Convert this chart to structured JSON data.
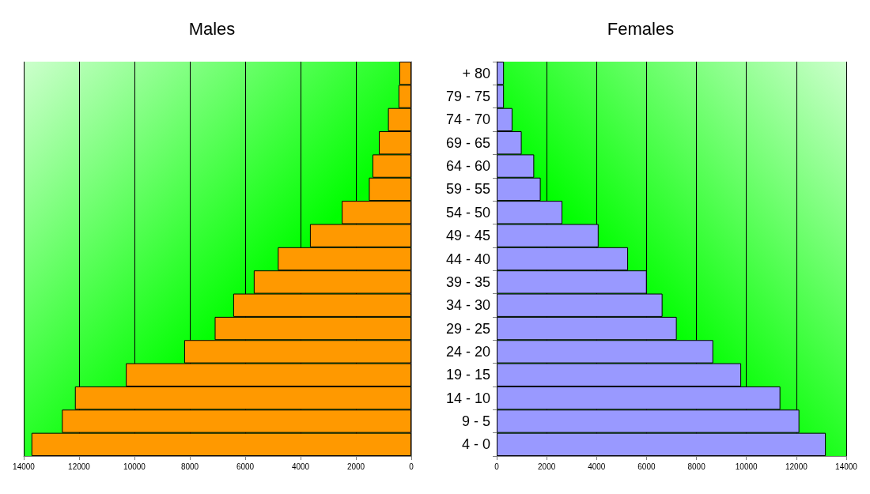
{
  "chart_data": [
    {
      "type": "bar",
      "title": "Males",
      "orientation": "horizontal",
      "categories": [
        null,
        null,
        null,
        null,
        null,
        null,
        null,
        null,
        null,
        null,
        null,
        null,
        null,
        null,
        null,
        null,
        null
      ],
      "values": [
        430,
        460,
        840,
        1170,
        1400,
        1530,
        2510,
        3660,
        4820,
        5690,
        6430,
        7100,
        8200,
        10310,
        12150,
        12620,
        13720
      ],
      "color": "#ff9900",
      "xlim": [
        14000,
        0
      ],
      "xticks": [
        14000,
        12000,
        10000,
        8000,
        6000,
        4000,
        2000,
        0
      ],
      "grid": "x"
    },
    {
      "type": "bar",
      "title": "Females",
      "orientation": "horizontal",
      "categories": [
        "+ 80",
        "79 - 75",
        "74 - 70",
        "69 - 65",
        "64 - 60",
        "59 - 55",
        "54 - 50",
        "49 - 45",
        "44 - 40",
        "39 - 35",
        "34 - 30",
        "29 - 25",
        "24 - 20",
        "19 - 15",
        "14 - 10",
        "9 - 5",
        "4 - 0"
      ],
      "values": [
        290,
        290,
        630,
        1000,
        1500,
        1760,
        2630,
        4080,
        5260,
        6010,
        6640,
        7210,
        8670,
        9790,
        11360,
        12120,
        13180
      ],
      "color": "#9999ff",
      "xlim": [
        0,
        14000
      ],
      "xticks": [
        0,
        2000,
        4000,
        6000,
        8000,
        10000,
        12000,
        14000
      ],
      "grid": "x"
    }
  ]
}
